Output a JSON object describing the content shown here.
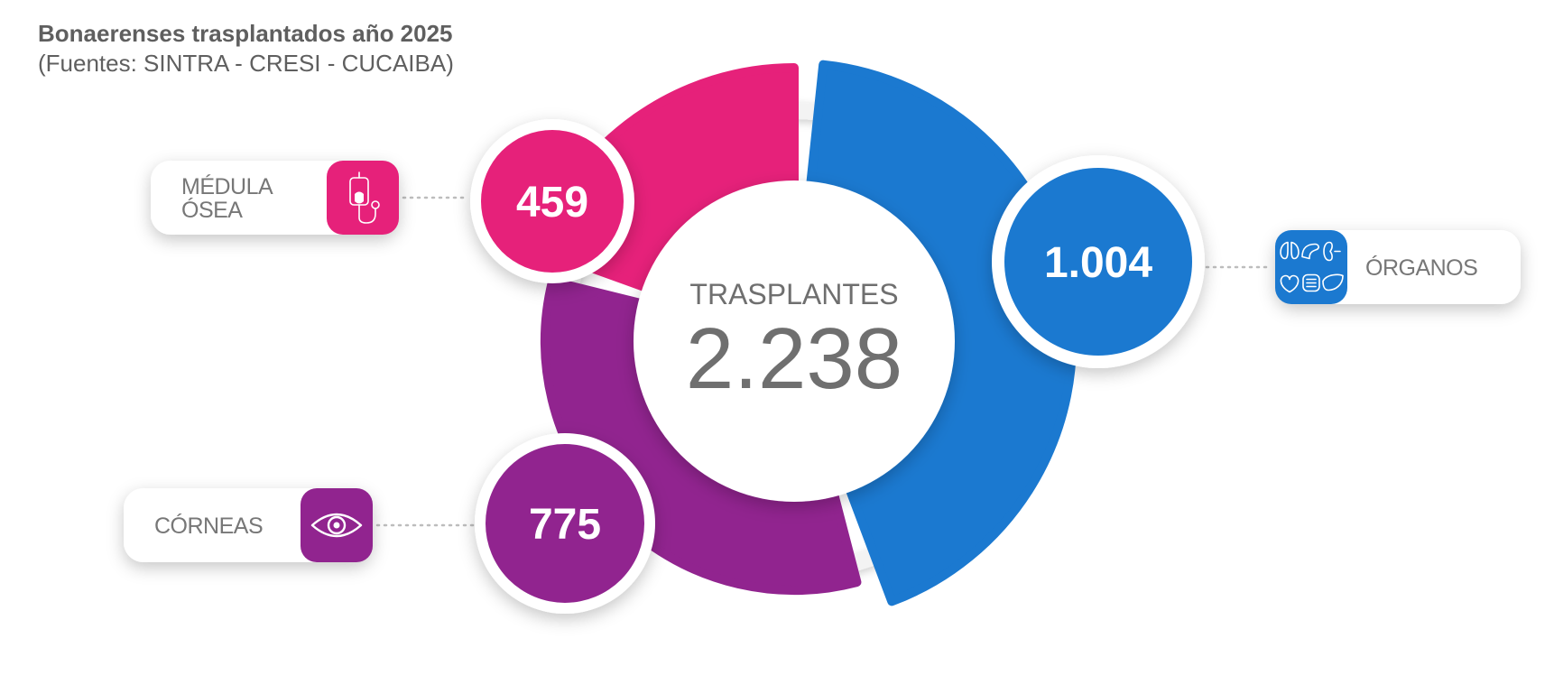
{
  "header": {
    "title": "Bonaerenses trasplantados año 2025",
    "subtitle": "(Fuentes: SINTRA - CRESI - CUCAIBA)"
  },
  "chart_data": {
    "type": "pie",
    "title": "Bonaerenses trasplantados año 2025",
    "subtitle": "(Fuentes: SINTRA - CRESI - CUCAIBA)",
    "total_label": "TRASPLANTES",
    "total_value": "2.238",
    "total": 2238,
    "slices": [
      {
        "label_lines": [
          "ÓRGANOS"
        ],
        "value": 1004,
        "value_label": "1.004",
        "color": "#1b79d0",
        "icon": "organs-icon"
      },
      {
        "label_lines": [
          "CÓRNEAS"
        ],
        "value": 775,
        "value_label": "775",
        "color": "#91248f",
        "icon": "eye-icon"
      },
      {
        "label_lines": [
          "MÉDULA",
          "ÓSEA"
        ],
        "value": 459,
        "value_label": "459",
        "color": "#e6217a",
        "icon": "iv-bag-icon"
      }
    ]
  }
}
